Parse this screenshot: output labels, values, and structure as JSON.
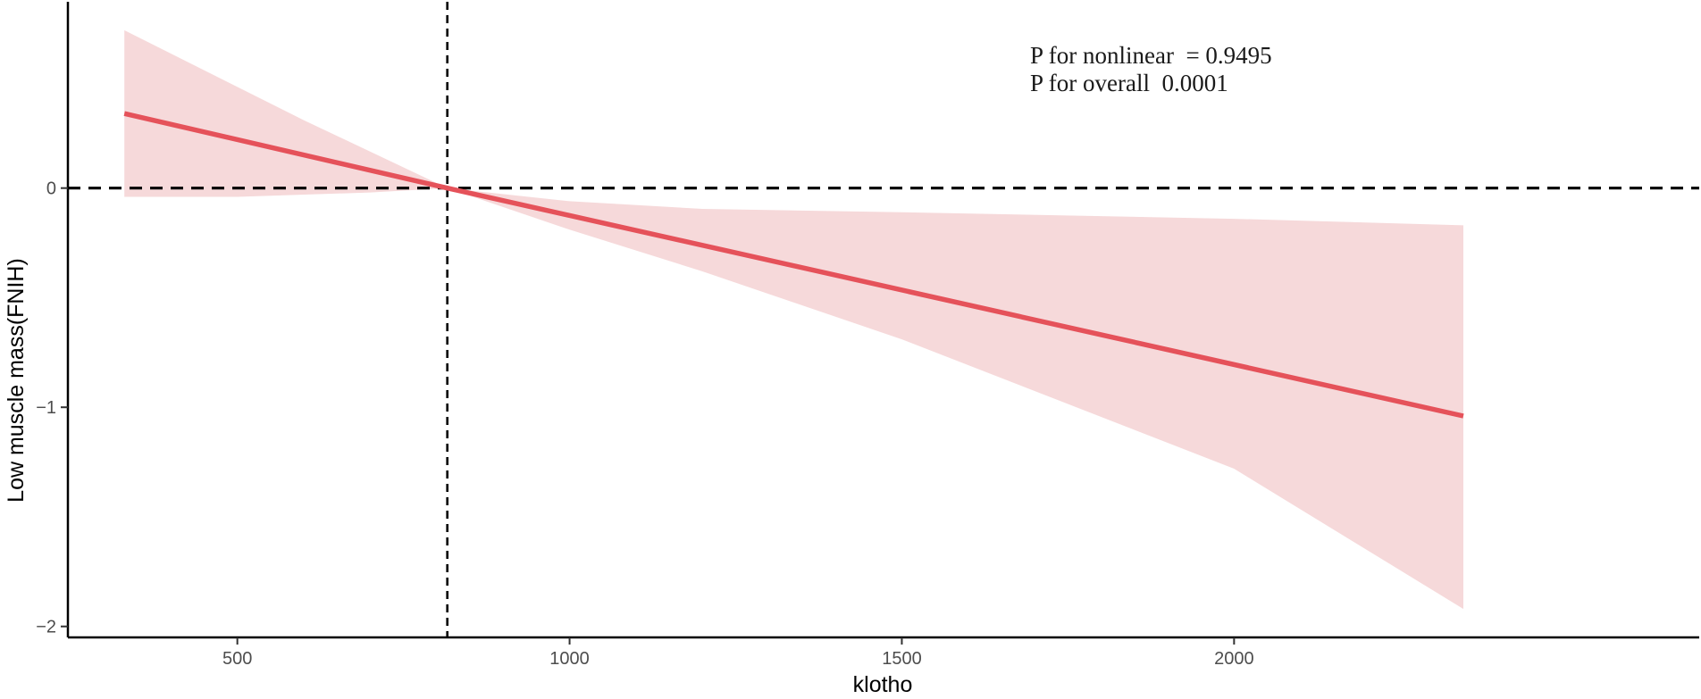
{
  "chart_data": {
    "type": "line",
    "title": "",
    "xlabel": "klotho",
    "ylabel": "Low muscle mass(FNIH)",
    "xlim": [
      245,
      2700
    ],
    "ylim": [
      -2.05,
      0.85
    ],
    "x_ticks": [
      500,
      1000,
      1500,
      2000
    ],
    "y_ticks": [
      0,
      -1,
      -2
    ],
    "x_tick_labels": [
      "500",
      "1000",
      "1500",
      "2000"
    ],
    "y_tick_labels": [
      "0",
      "−1",
      "−2"
    ],
    "grid": false,
    "legend": "none",
    "series": [
      {
        "x": [
          330,
          816,
          2345
        ],
        "y": [
          0.34,
          0.0,
          -1.04
        ],
        "ci_upper": [
          0.72,
          0.0,
          -0.17
        ],
        "ci_lower": [
          -0.04,
          0.0,
          -1.92
        ],
        "ci_upper_knots": [
          [
            330,
            0.72
          ],
          [
            600,
            0.31
          ],
          [
            816,
            0.0
          ],
          [
            1000,
            -0.06
          ],
          [
            1200,
            -0.095
          ],
          [
            1500,
            -0.11
          ],
          [
            2000,
            -0.14
          ],
          [
            2345,
            -0.17
          ]
        ],
        "ci_lower_knots": [
          [
            330,
            -0.04
          ],
          [
            500,
            -0.04
          ],
          [
            700,
            -0.02
          ],
          [
            816,
            0.0
          ],
          [
            1000,
            -0.19
          ],
          [
            1200,
            -0.38
          ],
          [
            1500,
            -0.69
          ],
          [
            2000,
            -1.28
          ],
          [
            2345,
            -1.92
          ]
        ]
      }
    ],
    "reference_lines": {
      "horizontal_y": 0,
      "vertical_x": 816
    },
    "annotations": [
      "P for nonlinear  = 0.9495",
      "P for overall  0.0001"
    ],
    "colors": {
      "line": "#e5525a",
      "ci_fill": "#f6d9da",
      "reference": "#000000",
      "axis": "#000000",
      "tick_text": "#4d4d4d"
    }
  }
}
